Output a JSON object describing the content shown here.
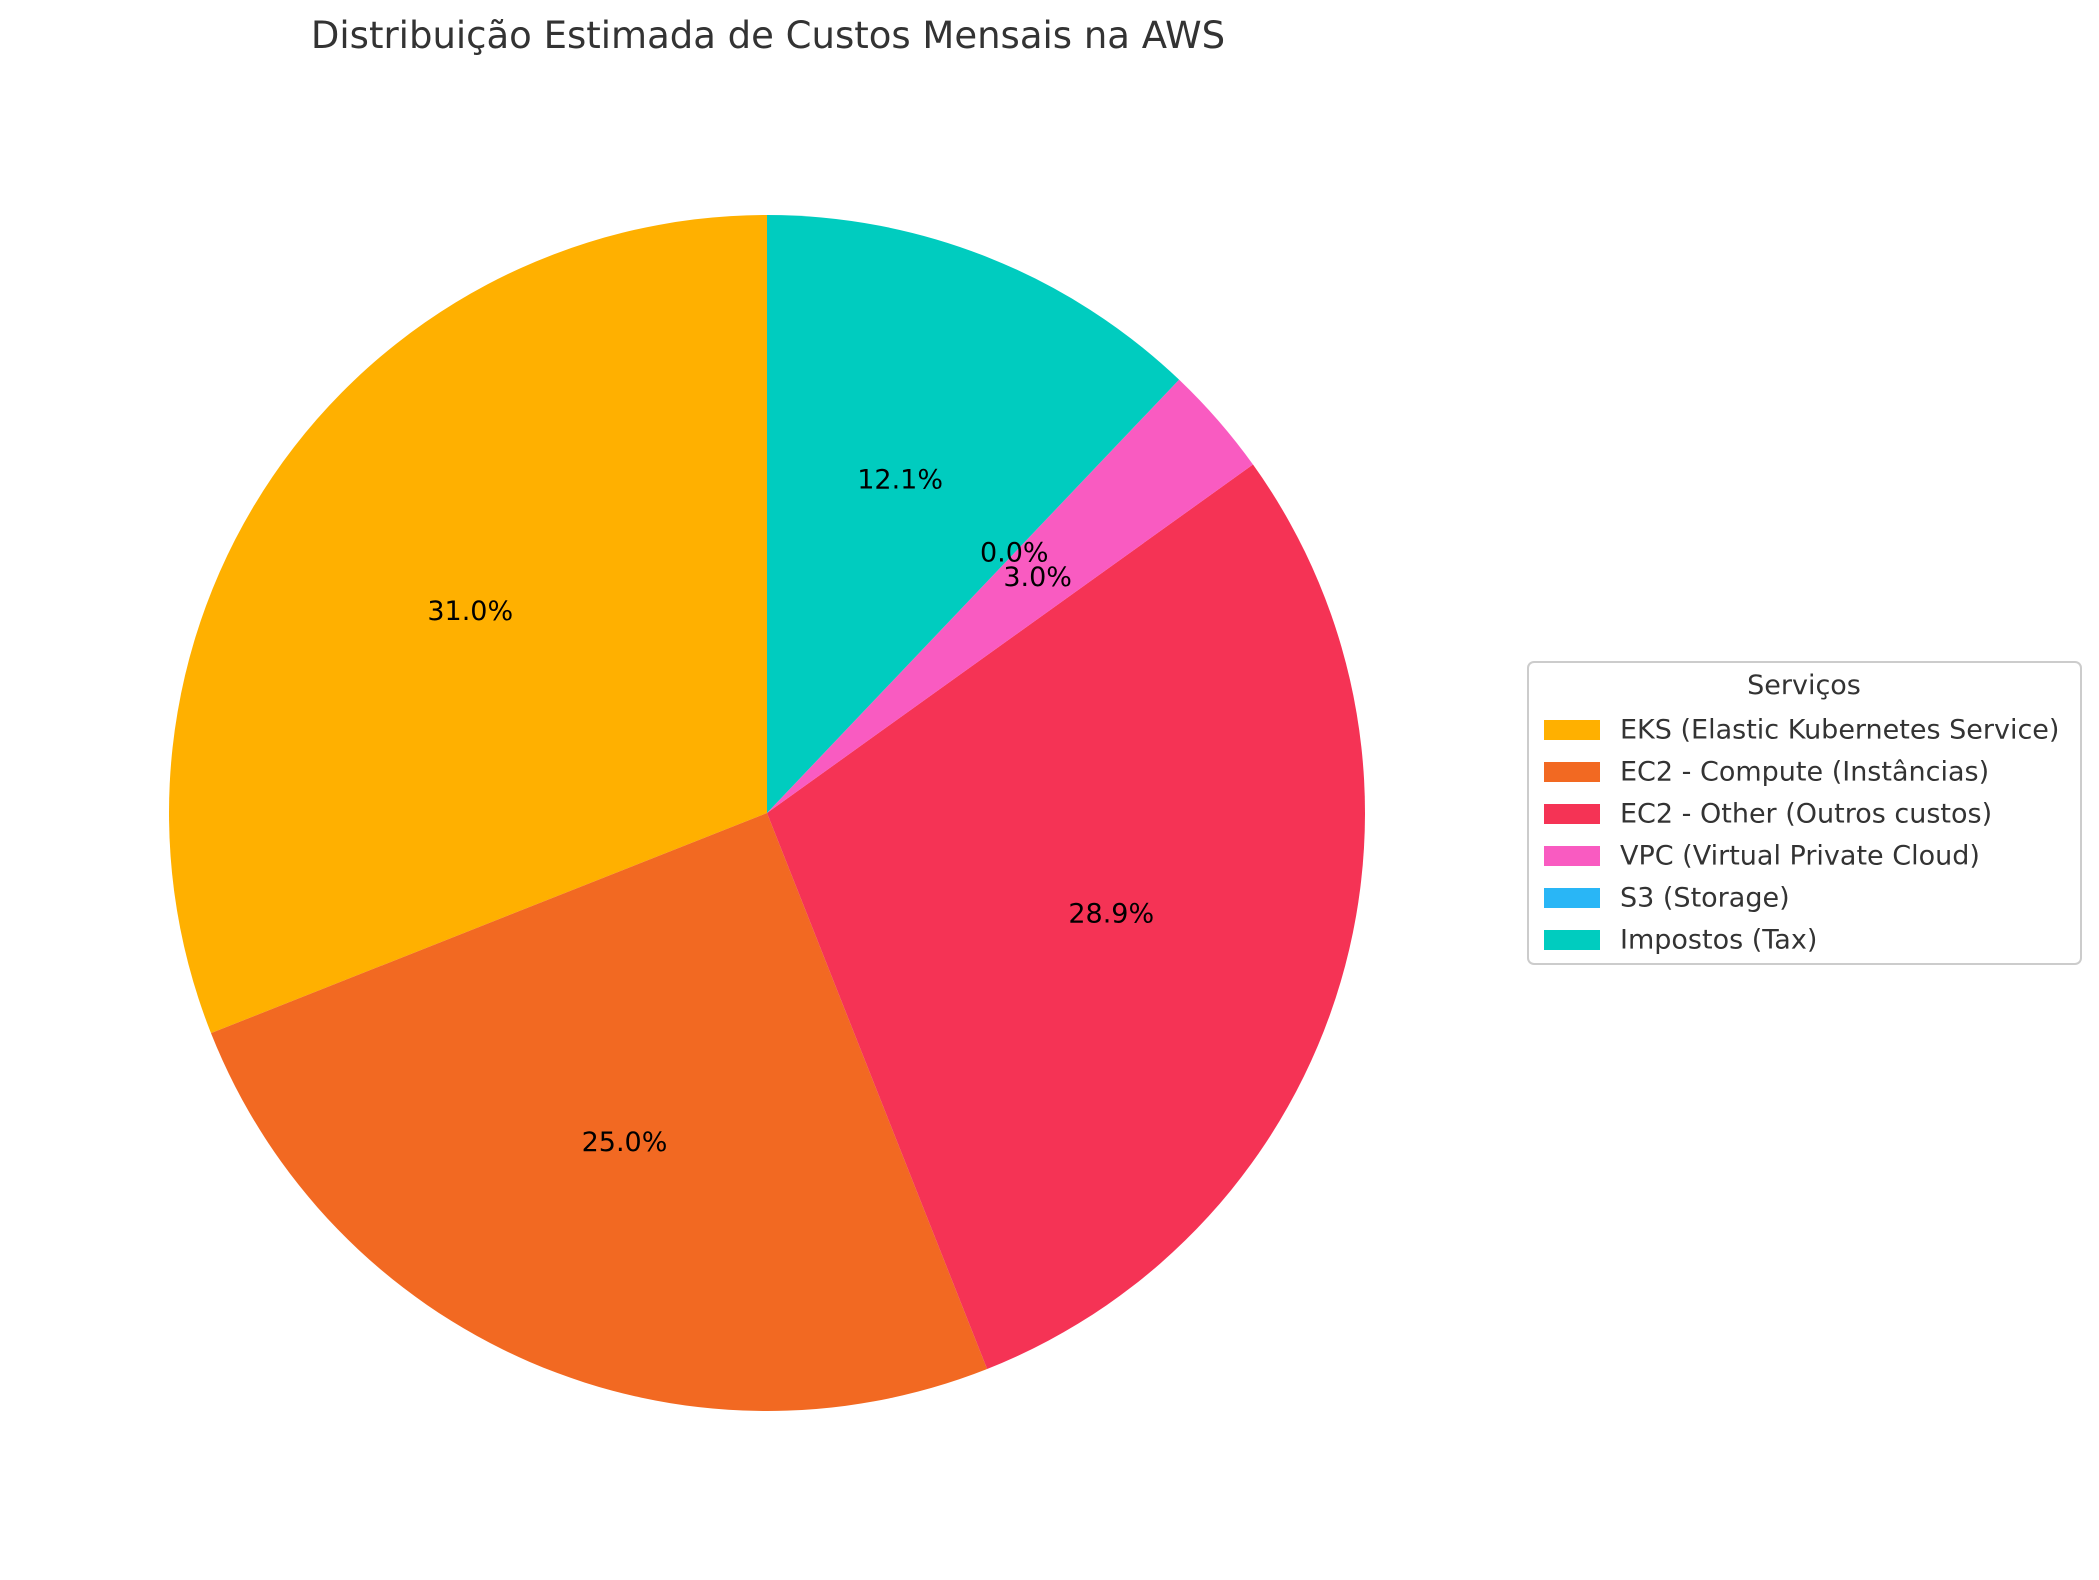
{
  "chart_data": {
    "type": "pie",
    "title": "Distribuição Estimada de Custos Mensais na AWS",
    "legend_title": "Serviços",
    "legend_position": "right",
    "start_angle_deg": 90,
    "direction": "counterclockwise",
    "slices": [
      {
        "label": "EKS (Elastic Kubernetes Service)",
        "value": 31.0,
        "pct_label": "31.0%",
        "color": "#FFB000"
      },
      {
        "label": "EC2 - Compute (Instâncias)",
        "value": 25.0,
        "pct_label": "25.0%",
        "color": "#F26922"
      },
      {
        "label": "EC2 - Other (Outros custos)",
        "value": 28.9,
        "pct_label": "28.9%",
        "color": "#F53355"
      },
      {
        "label": "VPC (Virtual Private Cloud)",
        "value": 3.0,
        "pct_label": "3.0%",
        "color": "#F95BC1"
      },
      {
        "label": "S3 (Storage)",
        "value": 0.0,
        "pct_label": "0.0%",
        "color": "#29B6F6"
      },
      {
        "label": "Impostos (Tax)",
        "value": 12.1,
        "pct_label": "12.1%",
        "color": "#00CCBF"
      }
    ]
  }
}
